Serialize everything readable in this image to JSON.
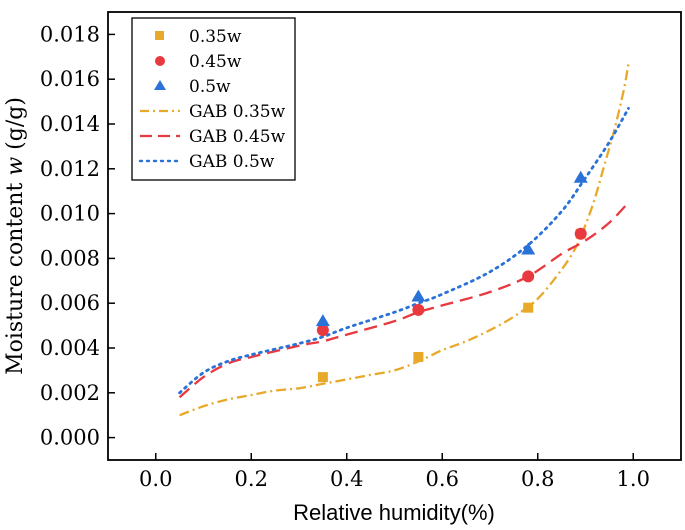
{
  "chart_data": {
    "type": "scatter",
    "title": "",
    "xlabel": "Relative humidity(%)",
    "ylabel_prefix": "Moisture content ",
    "ylabel_var": "w",
    "ylabel_suffix": " (g/g)",
    "xlim": [
      -0.1,
      1.1
    ],
    "ylim": [
      -0.001,
      0.019
    ],
    "xticks": [
      0.0,
      0.2,
      0.4,
      0.6,
      0.8,
      1.0
    ],
    "xtick_labels": [
      "0.0",
      "0.2",
      "0.4",
      "0.6",
      "0.8",
      "1.0"
    ],
    "yticks": [
      0.0,
      0.002,
      0.004,
      0.006,
      0.008,
      0.01,
      0.012,
      0.014,
      0.016,
      0.018
    ],
    "ytick_labels": [
      "0.000",
      "0.002",
      "0.004",
      "0.006",
      "0.008",
      "0.010",
      "0.012",
      "0.014",
      "0.016",
      "0.018"
    ],
    "legend_position": "top-left",
    "series": [
      {
        "name": "0.35w",
        "kind": "points",
        "marker": "square",
        "color": "#e8a92a",
        "x": [
          0.35,
          0.55,
          0.78,
          0.89
        ],
        "y": [
          0.0027,
          0.0036,
          0.0058,
          0.0091
        ]
      },
      {
        "name": "0.45w",
        "kind": "points",
        "marker": "circle",
        "color": "#e8393f",
        "x": [
          0.35,
          0.55,
          0.78,
          0.89
        ],
        "y": [
          0.0048,
          0.0057,
          0.0072,
          0.0091
        ]
      },
      {
        "name": "0.5w",
        "kind": "points",
        "marker": "triangle",
        "color": "#2a71d8",
        "x": [
          0.35,
          0.55,
          0.78,
          0.89
        ],
        "y": [
          0.0052,
          0.0063,
          0.0084,
          0.0116
        ]
      },
      {
        "name": "GAB 0.35w",
        "kind": "line",
        "dash": "dashdot",
        "color": "#e8a92a",
        "x": [
          0.05,
          0.1,
          0.15,
          0.2,
          0.25,
          0.3,
          0.35,
          0.4,
          0.45,
          0.5,
          0.55,
          0.6,
          0.65,
          0.7,
          0.75,
          0.8,
          0.85,
          0.88,
          0.9,
          0.92,
          0.94,
          0.96,
          0.98,
          0.99
        ],
        "y": [
          0.001,
          0.0014,
          0.0017,
          0.0019,
          0.0021,
          0.0022,
          0.0024,
          0.0026,
          0.0028,
          0.003,
          0.0034,
          0.0039,
          0.0043,
          0.0048,
          0.0054,
          0.0062,
          0.0075,
          0.0085,
          0.0095,
          0.0107,
          0.0122,
          0.0137,
          0.0155,
          0.0167
        ]
      },
      {
        "name": "GAB 0.45w",
        "kind": "line",
        "dash": "dash",
        "color": "#e8393f",
        "x": [
          0.05,
          0.1,
          0.15,
          0.2,
          0.3,
          0.35,
          0.4,
          0.5,
          0.55,
          0.6,
          0.7,
          0.78,
          0.85,
          0.9,
          0.95,
          0.99
        ],
        "y": [
          0.0018,
          0.0027,
          0.0033,
          0.0036,
          0.0041,
          0.0043,
          0.0046,
          0.0052,
          0.0056,
          0.0059,
          0.0065,
          0.0072,
          0.0082,
          0.0088,
          0.0096,
          0.0105
        ]
      },
      {
        "name": "GAB 0.5w",
        "kind": "line",
        "dash": "dot",
        "color": "#2a71d8",
        "x": [
          0.05,
          0.1,
          0.15,
          0.2,
          0.3,
          0.35,
          0.4,
          0.5,
          0.55,
          0.6,
          0.7,
          0.78,
          0.85,
          0.9,
          0.95,
          0.99
        ],
        "y": [
          0.002,
          0.0029,
          0.0034,
          0.0037,
          0.0042,
          0.0045,
          0.0049,
          0.0056,
          0.006,
          0.0064,
          0.0074,
          0.0086,
          0.0101,
          0.0116,
          0.0132,
          0.0147
        ]
      }
    ]
  }
}
